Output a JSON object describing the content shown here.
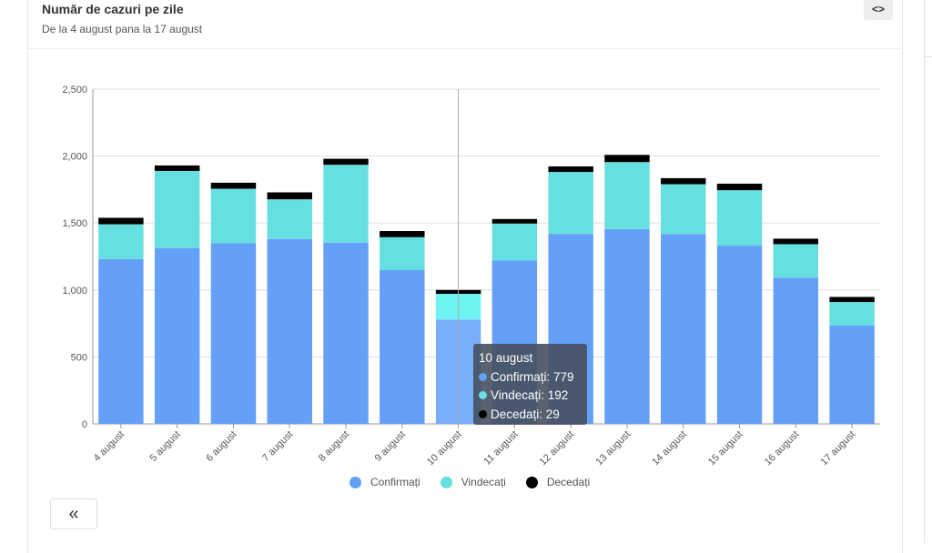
{
  "header": {
    "title": "Număr de cazuri pe zile",
    "subtitle": "De la 4 august pana la 17 august",
    "code_icon": "<>"
  },
  "back_button": "«",
  "colors": {
    "confirmed": "#65a0f8",
    "recovered": "#66dfe0",
    "deceased": "#000000"
  },
  "chart_data": {
    "type": "bar",
    "stacked": true,
    "grid": true,
    "legend_position": "bottom",
    "categories": [
      "4 august",
      "5 august",
      "6 august",
      "7 august",
      "8 august",
      "9 august",
      "10 august",
      "11 august",
      "12 august",
      "13 august",
      "14 august",
      "15 august",
      "16 august",
      "17 august"
    ],
    "series": [
      {
        "name": "Confirmați",
        "values": [
          1231,
          1313,
          1349,
          1381,
          1353,
          1148,
          779,
          1220,
          1419,
          1455,
          1417,
          1331,
          1091,
          736
        ]
      },
      {
        "name": "Vindecați",
        "values": [
          260,
          576,
          407,
          296,
          582,
          246,
          192,
          276,
          462,
          500,
          373,
          414,
          251,
          174
        ]
      },
      {
        "name": "Decedați",
        "values": [
          48,
          41,
          45,
          52,
          45,
          46,
          29,
          34,
          42,
          54,
          45,
          49,
          41,
          38
        ]
      }
    ],
    "ylim": [
      0,
      2500
    ],
    "yticks": [
      "0",
      "500",
      "1,000",
      "1,500",
      "2,000",
      "2,500"
    ],
    "tooltip": {
      "title": "10 august",
      "lines": [
        "Confirmați: 779",
        "Vindecați: 192",
        "Decedați: 29"
      ]
    }
  }
}
